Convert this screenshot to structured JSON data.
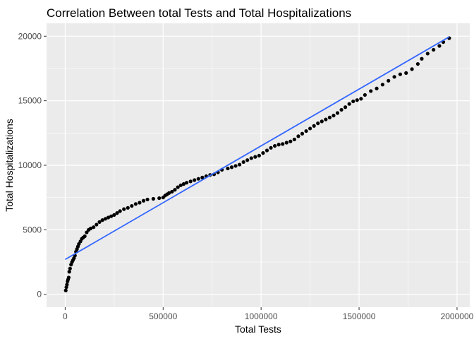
{
  "chart_data": {
    "type": "scatter",
    "title": "Correlation Between total Tests and Total Hospitalizations",
    "xlabel": "Total Tests",
    "ylabel": "Total Hospitalizations",
    "xlim": [
      -95000,
      2065000
    ],
    "ylim": [
      -1000,
      21000
    ],
    "xticks": [
      0,
      500000,
      1000000,
      1500000,
      2000000
    ],
    "xtick_labels": [
      "0",
      "500000",
      "1000000",
      "1500000",
      "2000000"
    ],
    "yticks": [
      0,
      5000,
      10000,
      15000,
      20000
    ],
    "ytick_labels": [
      "0",
      "5000",
      "10000",
      "15000",
      "20000"
    ],
    "grid": true,
    "background": "#ebebeb",
    "grid_color": "#ffffff",
    "point_color": "#000000",
    "trend_color": "#3366ff",
    "series": [
      {
        "kind": "points",
        "x": [
          3000,
          6000,
          9000,
          12000,
          15000,
          18000,
          21000,
          25000,
          30000,
          35000,
          40000,
          45000,
          50000,
          55000,
          60000,
          65000,
          70000,
          78000,
          85000,
          92000,
          100000,
          110000,
          120000,
          130000,
          145000,
          160000,
          175000,
          190000,
          205000,
          220000,
          235000,
          250000,
          265000,
          280000,
          300000,
          320000,
          340000,
          360000,
          380000,
          400000,
          420000,
          450000,
          480000,
          500000,
          510000,
          520000,
          530000,
          545000,
          560000,
          575000,
          590000,
          605000,
          620000,
          640000,
          660000,
          680000,
          700000,
          720000,
          740000,
          760000,
          780000,
          800000,
          830000,
          850000,
          870000,
          890000,
          910000,
          930000,
          950000,
          970000,
          990000,
          1010000,
          1030000,
          1050000,
          1070000,
          1090000,
          1110000,
          1130000,
          1150000,
          1170000,
          1190000,
          1210000,
          1230000,
          1250000,
          1270000,
          1290000,
          1310000,
          1330000,
          1350000,
          1370000,
          1390000,
          1410000,
          1430000,
          1450000,
          1470000,
          1490000,
          1510000,
          1530000,
          1560000,
          1590000,
          1620000,
          1650000,
          1680000,
          1710000,
          1740000,
          1770000,
          1800000,
          1820000,
          1850000,
          1880000,
          1910000,
          1930000,
          1960000
        ],
        "y": [
          300,
          550,
          750,
          1000,
          1150,
          1300,
          1750,
          2000,
          2300,
          2500,
          2650,
          2800,
          3000,
          3300,
          3500,
          3700,
          3900,
          4100,
          4300,
          4400,
          4500,
          4800,
          5000,
          5100,
          5200,
          5400,
          5600,
          5750,
          5850,
          5950,
          6050,
          6150,
          6300,
          6450,
          6600,
          6700,
          6850,
          7000,
          7100,
          7250,
          7350,
          7400,
          7450,
          7500,
          7650,
          7750,
          7850,
          7950,
          8100,
          8300,
          8450,
          8550,
          8650,
          8750,
          8850,
          8950,
          9050,
          9150,
          9250,
          9300,
          9450,
          9650,
          9750,
          9850,
          9950,
          10050,
          10250,
          10400,
          10550,
          10650,
          10750,
          10950,
          11150,
          11350,
          11500,
          11600,
          11650,
          11750,
          11850,
          12000,
          12250,
          12450,
          12650,
          12850,
          13050,
          13250,
          13400,
          13550,
          13700,
          13850,
          14050,
          14300,
          14500,
          14750,
          14950,
          15050,
          15150,
          15450,
          15750,
          15950,
          16250,
          16550,
          16850,
          17050,
          17150,
          17450,
          17850,
          18250,
          18650,
          18950,
          19250,
          19550,
          19850
        ]
      },
      {
        "kind": "trend-line",
        "x": [
          0,
          1960000
        ],
        "y": [
          2700,
          19950
        ]
      }
    ]
  }
}
